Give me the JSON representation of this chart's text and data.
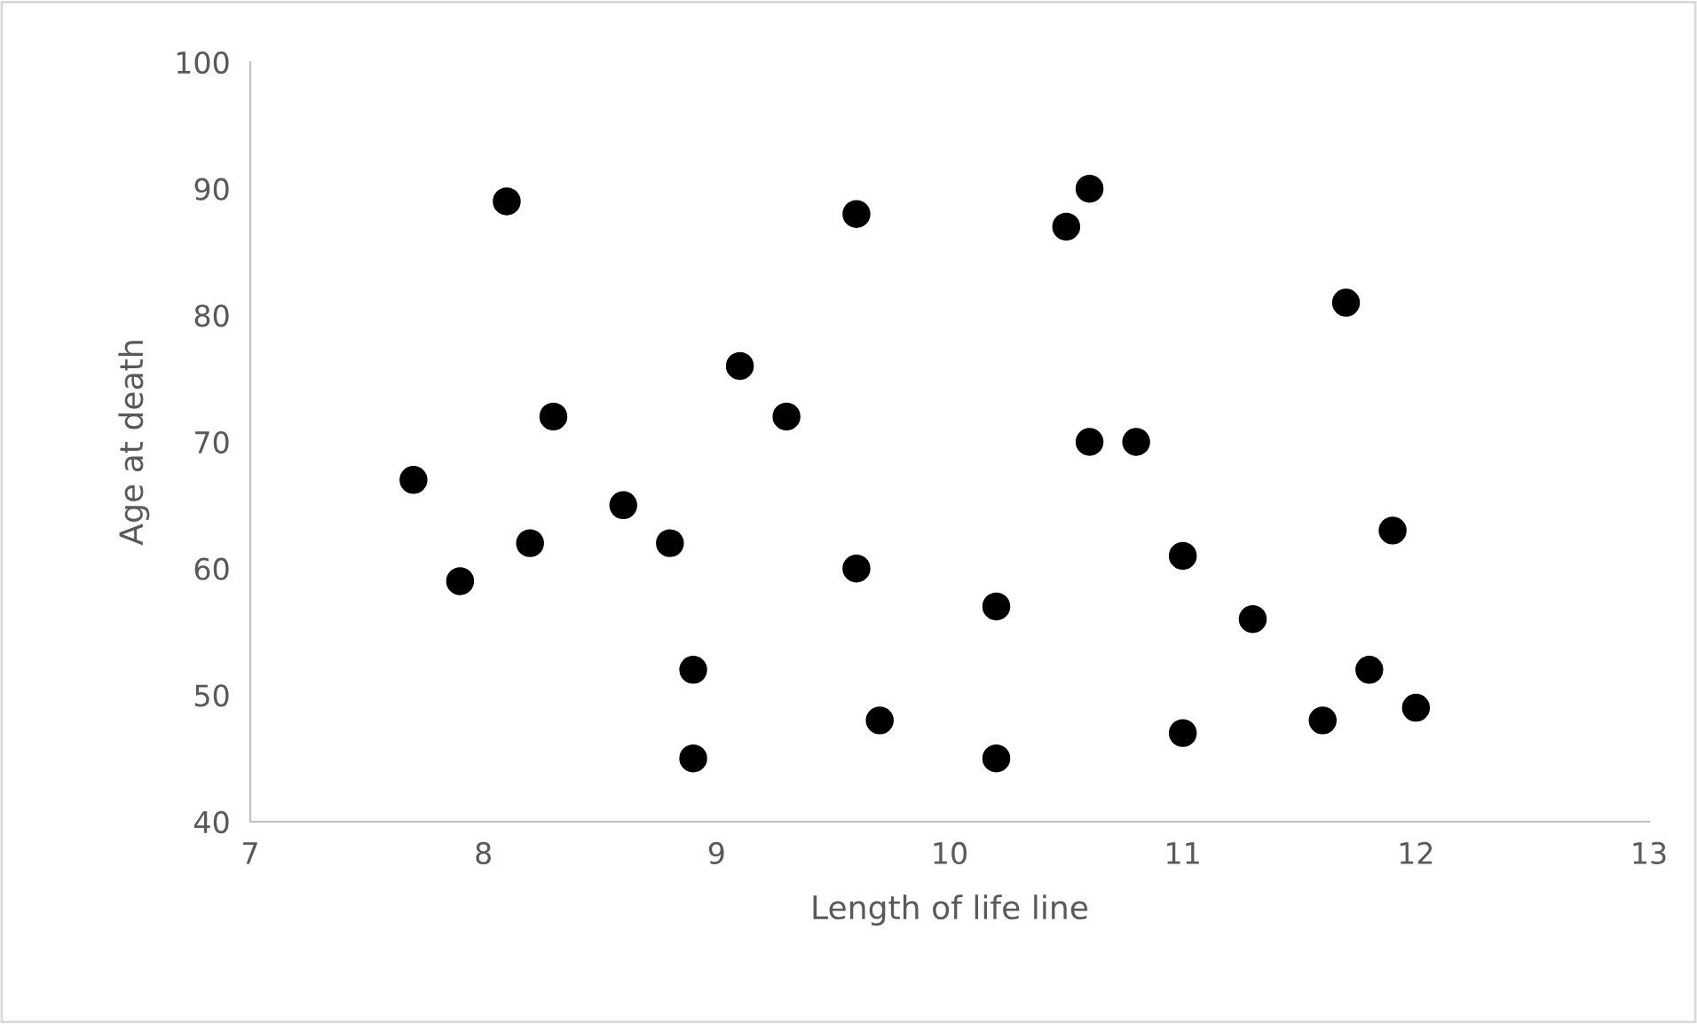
{
  "chart_data": {
    "type": "scatter",
    "xlabel": "Length of life line",
    "ylabel": "Age at death",
    "x": [
      7.7,
      7.9,
      8.1,
      8.2,
      8.3,
      8.6,
      8.8,
      8.9,
      8.9,
      9.1,
      9.3,
      9.6,
      9.6,
      9.7,
      10.2,
      10.2,
      10.5,
      10.6,
      10.6,
      10.8,
      11.0,
      11.0,
      11.3,
      11.6,
      11.7,
      11.8,
      11.9,
      12.0
    ],
    "series": [
      {
        "color": "#000000",
        "values": [
          67,
          59,
          89,
          62,
          72,
          65,
          62,
          52,
          45,
          76,
          72,
          88,
          60,
          48,
          57,
          45,
          87,
          90,
          70,
          70,
          61,
          47,
          56,
          48,
          81,
          52,
          63,
          49
        ]
      }
    ],
    "xlim": [
      7,
      13
    ],
    "xticks": [
      7,
      8,
      9,
      10,
      11,
      12,
      13
    ],
    "ylim": [
      40,
      100
    ],
    "yticks": [
      40,
      50,
      60,
      70,
      80,
      90,
      100
    ],
    "marker": "circle",
    "grid": false,
    "legend": false
  }
}
